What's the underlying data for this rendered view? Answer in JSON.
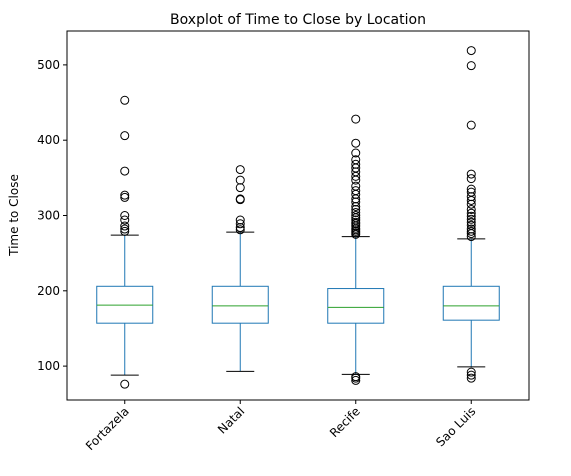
{
  "chart_data": {
    "type": "boxplot",
    "title": "Boxplot of Time to Close by Location",
    "xlabel": "",
    "ylabel": "Time to Close",
    "ylim": [
      55,
      545
    ],
    "yticks": [
      100,
      200,
      300,
      400,
      500
    ],
    "grid": false,
    "legend": "none",
    "categories": [
      "Fortazela",
      "Natal",
      "Recife",
      "Sao Luis"
    ],
    "boxes": [
      {
        "category": "Fortazela",
        "whisker_low": 88,
        "q1": 157,
        "median": 181,
        "q3": 206,
        "whisker_high": 274,
        "outliers": [
          76,
          279,
          282,
          286,
          294,
          300,
          324,
          327,
          359,
          406,
          453
        ]
      },
      {
        "category": "Natal",
        "whisker_low": 93,
        "q1": 157,
        "median": 180,
        "q3": 206,
        "whisker_high": 278,
        "outliers": [
          281,
          284,
          289,
          294,
          321,
          322,
          337,
          347,
          361
        ]
      },
      {
        "category": "Recife",
        "whisker_low": 89,
        "q1": 157,
        "median": 178,
        "q3": 203,
        "whisker_high": 272,
        "outliers": [
          81,
          84,
          86,
          275,
          277,
          279,
          281,
          283,
          286,
          289,
          291,
          294,
          297,
          300,
          304,
          308,
          312,
          318,
          322,
          328,
          333,
          339,
          347,
          352,
          358,
          363,
          368,
          374,
          383,
          396,
          428
        ]
      },
      {
        "category": "Sao Luis",
        "whisker_low": 99,
        "q1": 161,
        "median": 180,
        "q3": 206,
        "whisker_high": 269,
        "outliers": [
          84,
          88,
          92,
          272,
          276,
          279,
          282,
          287,
          291,
          295,
          299,
          303,
          308,
          315,
          320,
          325,
          331,
          335,
          349,
          355,
          420,
          499,
          519
        ]
      }
    ],
    "colors": {
      "box": "#1f77b4",
      "median": "#2ca02c",
      "whisker_cap": "#000000",
      "outlier": "#000000",
      "axes": "#000000"
    }
  }
}
